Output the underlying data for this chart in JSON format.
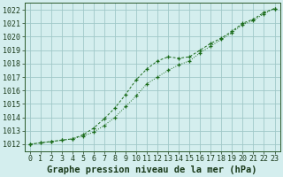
{
  "title": "Graphe pression niveau de la mer (hPa)",
  "x_labels": [
    0,
    1,
    2,
    3,
    4,
    5,
    6,
    7,
    8,
    9,
    10,
    11,
    12,
    13,
    14,
    15,
    16,
    17,
    18,
    19,
    20,
    21,
    22,
    23
  ],
  "ylim": [
    1011.5,
    1022.5
  ],
  "yticks": [
    1012,
    1013,
    1014,
    1015,
    1016,
    1017,
    1018,
    1019,
    1020,
    1021,
    1022
  ],
  "line1_x": [
    0,
    1,
    2,
    3,
    4,
    5,
    6,
    7,
    8,
    9,
    10,
    11,
    12,
    13,
    14,
    15,
    16,
    17,
    18,
    19,
    20,
    21,
    22,
    23
  ],
  "line1_y": [
    1012.0,
    1012.1,
    1012.2,
    1012.3,
    1012.4,
    1012.6,
    1012.9,
    1013.4,
    1014.0,
    1014.8,
    1015.6,
    1016.5,
    1017.0,
    1017.5,
    1017.9,
    1018.2,
    1018.8,
    1019.3,
    1019.8,
    1020.3,
    1020.9,
    1021.2,
    1021.7,
    1022.1
  ],
  "line2_x": [
    0,
    1,
    2,
    3,
    4,
    5,
    6,
    7,
    8,
    9,
    10,
    11,
    12,
    13,
    14,
    15,
    16,
    17,
    18,
    19,
    20,
    21,
    22,
    23
  ],
  "line2_y": [
    1012.0,
    1012.1,
    1012.2,
    1012.3,
    1012.4,
    1012.7,
    1013.2,
    1013.9,
    1014.7,
    1015.7,
    1016.8,
    1017.6,
    1018.2,
    1018.5,
    1018.4,
    1018.5,
    1019.0,
    1019.5,
    1019.9,
    1020.4,
    1021.0,
    1021.3,
    1021.8,
    1022.1
  ],
  "line_color": "#1a6b1a",
  "background_color": "#d4eeee",
  "grid_color": "#a0c8c8",
  "title_fontsize": 7.5,
  "tick_fontsize": 6
}
